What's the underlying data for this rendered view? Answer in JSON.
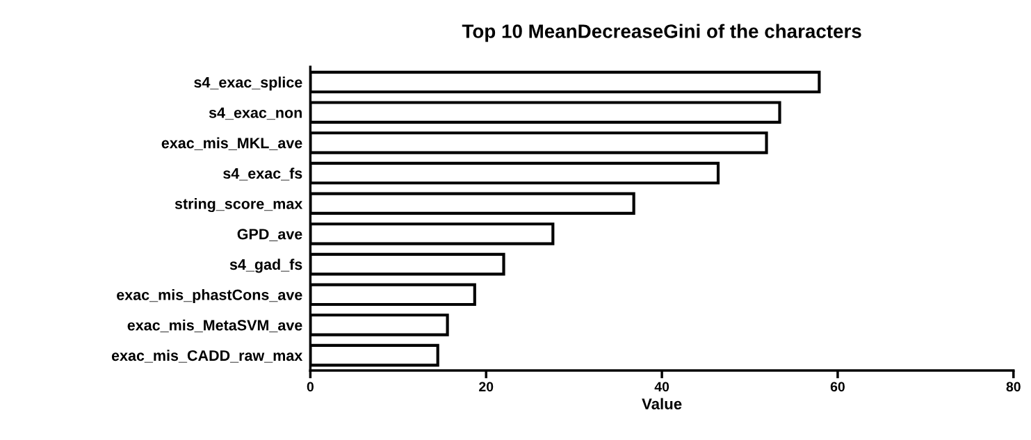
{
  "chart_data": {
    "type": "bar",
    "orientation": "horizontal",
    "title": "Top 10 MeanDecreaseGini of the characters",
    "xlabel": "Value",
    "categories": [
      "s4_exac_splice",
      "s4_exac_non",
      "exac_mis_MKL_ave",
      "s4_exac_fs",
      "string_score_max",
      "GPD_ave",
      "s4_gad_fs",
      "exac_mis_phastCons_ave",
      "exac_mis_MetaSVM_ave",
      "exac_mis_CADD_raw_max"
    ],
    "values": [
      57.9,
      53.4,
      51.9,
      46.4,
      36.8,
      27.6,
      22.0,
      18.7,
      15.6,
      14.5
    ],
    "color": "#ffffff",
    "xlim": [
      0,
      80
    ],
    "xticks": [
      0,
      20,
      40,
      60,
      80
    ],
    "grid": false
  }
}
